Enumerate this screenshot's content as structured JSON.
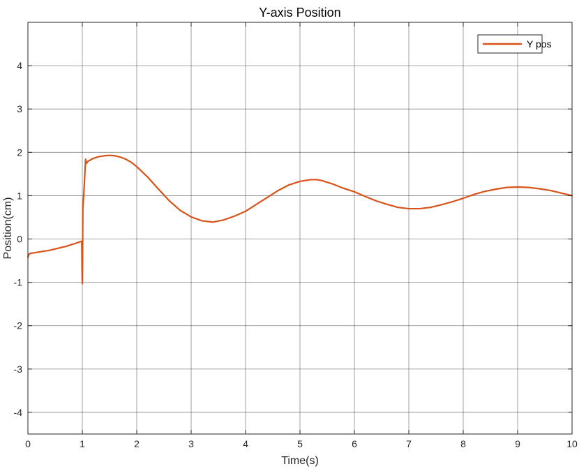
{
  "chart_data": {
    "type": "line",
    "title": "Y-axis Position",
    "xlabel": "Time(s)",
    "ylabel": "Position(cm)",
    "xlim": [
      0,
      10
    ],
    "ylim": [
      -4.5,
      5
    ],
    "xticks": [
      0,
      1,
      2,
      3,
      4,
      5,
      6,
      7,
      8,
      9,
      10
    ],
    "yticks": [
      -4,
      -3,
      -2,
      -1,
      0,
      1,
      2,
      3,
      4
    ],
    "xtick_labels": [
      "0",
      "1",
      "2",
      "3",
      "4",
      "5",
      "6",
      "7",
      "8",
      "9",
      "10"
    ],
    "ytick_labels": [
      "-4",
      "-3",
      "-2",
      "-1",
      "0",
      "1",
      "2",
      "3",
      "4"
    ],
    "grid": true,
    "legend": {
      "position": "top-right"
    },
    "series": [
      {
        "name": "Y pos",
        "color": "#d95319",
        "x": [
          0,
          0.02,
          0.05,
          0.1,
          0.2,
          0.3,
          0.4,
          0.5,
          0.6,
          0.7,
          0.8,
          0.9,
          0.99,
          0.995,
          1.0,
          1.005,
          1.01,
          1.03,
          1.06,
          1.07,
          1.08,
          1.1,
          1.2,
          1.3,
          1.4,
          1.5,
          1.6,
          1.7,
          1.8,
          1.9,
          2.0,
          2.2,
          2.4,
          2.6,
          2.8,
          3.0,
          3.2,
          3.4,
          3.6,
          3.8,
          4.0,
          4.2,
          4.4,
          4.6,
          4.8,
          5.0,
          5.2,
          5.3,
          5.4,
          5.6,
          5.8,
          6.0,
          6.2,
          6.4,
          6.6,
          6.8,
          7.0,
          7.2,
          7.4,
          7.6,
          7.8,
          8.0,
          8.2,
          8.4,
          8.6,
          8.8,
          9.0,
          9.2,
          9.4,
          9.6,
          9.8,
          10.0
        ],
        "y": [
          -0.42,
          -0.35,
          -0.33,
          -0.32,
          -0.3,
          -0.28,
          -0.26,
          -0.23,
          -0.2,
          -0.17,
          -0.13,
          -0.09,
          -0.05,
          -0.7,
          -1.03,
          -0.4,
          0.7,
          1.1,
          1.84,
          1.74,
          1.75,
          1.79,
          1.86,
          1.9,
          1.92,
          1.93,
          1.92,
          1.89,
          1.84,
          1.77,
          1.67,
          1.43,
          1.15,
          0.88,
          0.66,
          0.51,
          0.42,
          0.39,
          0.44,
          0.53,
          0.64,
          0.8,
          0.96,
          1.12,
          1.25,
          1.33,
          1.37,
          1.37,
          1.35,
          1.27,
          1.17,
          1.09,
          0.98,
          0.88,
          0.8,
          0.73,
          0.7,
          0.7,
          0.73,
          0.79,
          0.86,
          0.94,
          1.03,
          1.1,
          1.15,
          1.19,
          1.2,
          1.19,
          1.16,
          1.12,
          1.06,
          1.0
        ]
      }
    ]
  }
}
